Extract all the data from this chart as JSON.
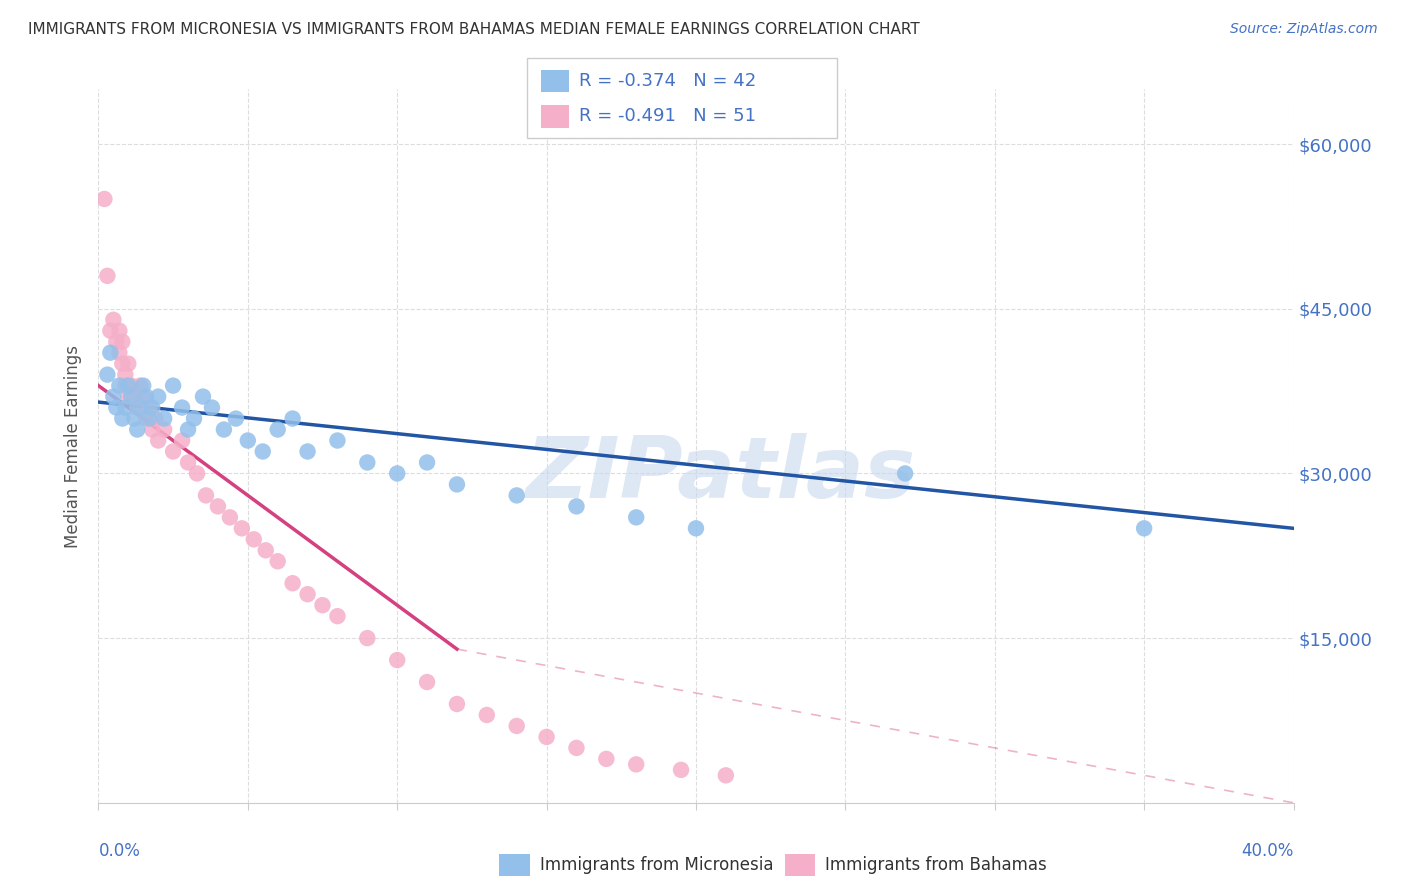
{
  "title": "IMMIGRANTS FROM MICRONESIA VS IMMIGRANTS FROM BAHAMAS MEDIAN FEMALE EARNINGS CORRELATION CHART",
  "source": "Source: ZipAtlas.com",
  "ylabel": "Median Female Earnings",
  "yticks": [
    0,
    15000,
    30000,
    45000,
    60000
  ],
  "ytick_labels": [
    "",
    "$15,000",
    "$30,000",
    "$45,000",
    "$60,000"
  ],
  "xlim": [
    0.0,
    0.4
  ],
  "ylim": [
    0,
    65000
  ],
  "watermark": "ZIPatlas",
  "legend_r1": "-0.374",
  "legend_n1": "42",
  "legend_r2": "-0.491",
  "legend_n2": "51",
  "legend_label1": "Immigrants from Micronesia",
  "legend_label2": "Immigrants from Bahamas",
  "blue_dot_color": "#92C0EA",
  "pink_dot_color": "#F5AFC8",
  "blue_line_color": "#2255A4",
  "pink_line_color": "#D44080",
  "accent_color": "#4472C4",
  "grid_color": "#DDDDDD",
  "micronesia_x": [
    0.003,
    0.004,
    0.005,
    0.006,
    0.007,
    0.008,
    0.009,
    0.01,
    0.011,
    0.012,
    0.013,
    0.014,
    0.015,
    0.016,
    0.017,
    0.018,
    0.02,
    0.022,
    0.025,
    0.028,
    0.03,
    0.032,
    0.035,
    0.038,
    0.042,
    0.046,
    0.05,
    0.055,
    0.06,
    0.065,
    0.07,
    0.08,
    0.09,
    0.1,
    0.11,
    0.12,
    0.14,
    0.16,
    0.18,
    0.2,
    0.27,
    0.35
  ],
  "micronesia_y": [
    39000,
    41000,
    37000,
    36000,
    38000,
    35000,
    36000,
    38000,
    37000,
    35000,
    34000,
    36000,
    38000,
    37000,
    35000,
    36000,
    37000,
    35000,
    38000,
    36000,
    34000,
    35000,
    37000,
    36000,
    34000,
    35000,
    33000,
    32000,
    34000,
    35000,
    32000,
    33000,
    31000,
    30000,
    31000,
    29000,
    28000,
    27000,
    26000,
    25000,
    30000,
    25000
  ],
  "bahamas_x": [
    0.002,
    0.003,
    0.004,
    0.005,
    0.006,
    0.007,
    0.007,
    0.008,
    0.008,
    0.009,
    0.009,
    0.01,
    0.01,
    0.011,
    0.012,
    0.013,
    0.014,
    0.015,
    0.016,
    0.017,
    0.018,
    0.019,
    0.02,
    0.022,
    0.025,
    0.028,
    0.03,
    0.033,
    0.036,
    0.04,
    0.044,
    0.048,
    0.052,
    0.056,
    0.06,
    0.065,
    0.07,
    0.075,
    0.08,
    0.09,
    0.1,
    0.11,
    0.12,
    0.13,
    0.14,
    0.15,
    0.16,
    0.17,
    0.18,
    0.195,
    0.21
  ],
  "bahamas_y": [
    55000,
    48000,
    43000,
    44000,
    42000,
    41000,
    43000,
    40000,
    42000,
    38000,
    39000,
    37000,
    40000,
    38000,
    37000,
    36000,
    38000,
    37000,
    35000,
    36000,
    34000,
    35000,
    33000,
    34000,
    32000,
    33000,
    31000,
    30000,
    28000,
    27000,
    26000,
    25000,
    24000,
    23000,
    22000,
    20000,
    19000,
    18000,
    17000,
    15000,
    13000,
    11000,
    9000,
    8000,
    7000,
    6000,
    5000,
    4000,
    3500,
    3000,
    2500
  ],
  "mic_line_x0": 0.0,
  "mic_line_y0": 36500,
  "mic_line_x1": 0.4,
  "mic_line_y1": 25000,
  "bah_line_x0": 0.0,
  "bah_line_y0": 38000,
  "bah_line_x1_solid": 0.12,
  "bah_line_y1_solid": 14000,
  "bah_line_x1_dash": 0.4,
  "bah_line_y1_dash": 0
}
